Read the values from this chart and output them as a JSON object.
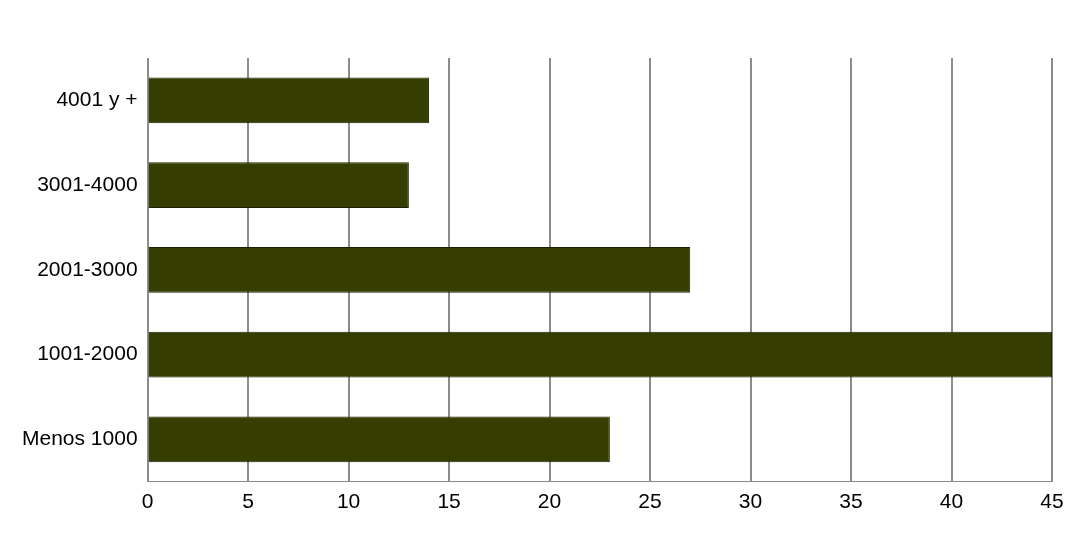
{
  "chart_data": {
    "type": "bar",
    "orientation": "horizontal",
    "categories": [
      "4001 y +",
      "3001-4000",
      "2001-3000",
      "1001-2000",
      "Menos 1000"
    ],
    "values": [
      14,
      13,
      27,
      45,
      23
    ],
    "color": "#363d00",
    "xlim": [
      0,
      45
    ],
    "xticks": [
      0,
      5,
      10,
      15,
      20,
      25,
      30,
      35,
      40,
      45
    ],
    "grid": "x",
    "legend": false
  }
}
